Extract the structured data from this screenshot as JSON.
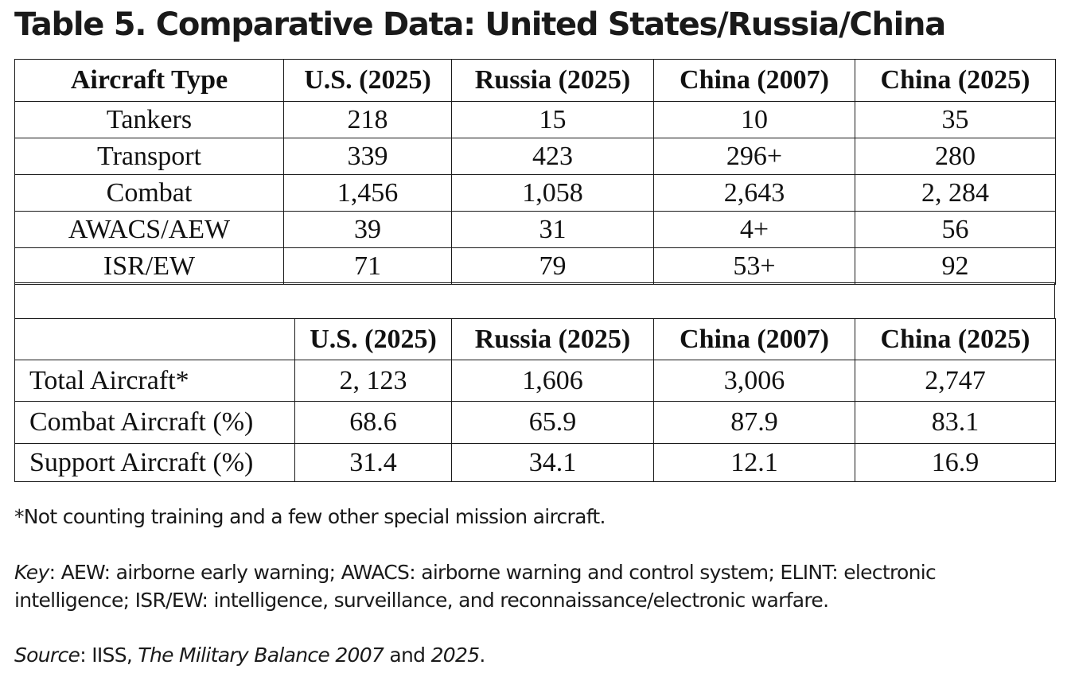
{
  "title": "Table 5. Comparative Data: United States/Russia/China",
  "table_top": {
    "headers": [
      "Aircraft Type",
      "U.S. (2025)",
      "Russia (2025)",
      "China (2007)",
      "China (2025)"
    ],
    "rows": [
      [
        "Tankers",
        "218",
        "15",
        "10",
        "35"
      ],
      [
        "Transport",
        "339",
        "423",
        "296+",
        "280"
      ],
      [
        "Combat",
        "1,456",
        "1,058",
        "2,643",
        "2, 284"
      ],
      [
        "AWACS/AEW",
        "39",
        "31",
        "4+",
        "56"
      ],
      [
        "ISR/EW",
        "71",
        "79",
        "53+",
        "92"
      ]
    ]
  },
  "table_bottom": {
    "headers": [
      "",
      "U.S. (2025)",
      "Russia (2025)",
      "China (2007)",
      "China (2025)"
    ],
    "rows": [
      [
        "Total Aircraft*",
        "2, 123",
        "1,606",
        "3,006",
        "2,747"
      ],
      [
        "Combat Aircraft (%)",
        "68.6",
        "65.9",
        "87.9",
        "83.1"
      ],
      [
        "Support Aircraft (%)",
        "31.4",
        "34.1",
        "12.1",
        "16.9"
      ]
    ]
  },
  "notes": {
    "footnote": "*Not counting training and a few other special mission aircraft.",
    "key_label": "Key",
    "key_line1": ": AEW: airborne early warning; AWACS: airborne warning and control system; ELINT: electronic",
    "key_line2": "intelligence; ISR/EW: intelligence, surveillance, and reconnaissance/electronic warfare.",
    "source_label": "Source",
    "source_text1": ": IISS, ",
    "source_title": "The Military Balance 2007",
    "source_text2": " and ",
    "source_year": "2025",
    "source_end": "."
  }
}
